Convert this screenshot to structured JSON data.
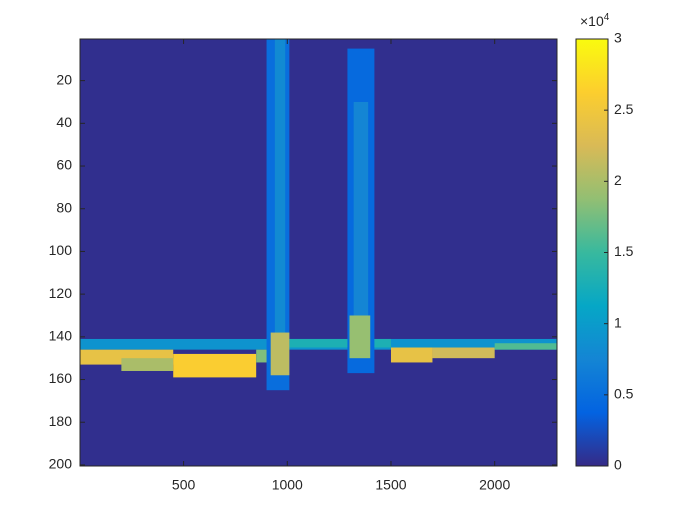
{
  "chart_data": {
    "type": "heatmap",
    "colormap": "parula",
    "xlim": [
      0.5,
      2300.5
    ],
    "ylim": [
      0.5,
      200.5
    ],
    "y_reversed": true,
    "xticks": [
      500,
      1000,
      1500,
      2000
    ],
    "yticks": [
      20,
      40,
      60,
      80,
      100,
      120,
      140,
      160,
      180,
      200
    ],
    "clim": [
      0,
      30000
    ],
    "colorbar_ticks": [
      0,
      {
        "value": 5000,
        "label": "0.5"
      },
      {
        "value": 10000,
        "label": "1"
      },
      {
        "value": 15000,
        "label": "1.5"
      },
      {
        "value": 20000,
        "label": "2"
      },
      {
        "value": 25000,
        "label": "2.5"
      },
      {
        "value": 30000,
        "label": "3"
      }
    ],
    "colorbar_scale_base": "×10",
    "colorbar_scale_exponent": "4",
    "background_value": 300,
    "regions": [
      {
        "x": [
          0.5,
          2300.5
        ],
        "y": [
          141,
          146
        ],
        "value": 9000
      },
      {
        "x": [
          0.5,
          450
        ],
        "y": [
          146,
          153
        ],
        "value": 24000
      },
      {
        "x": [
          200,
          450
        ],
        "y": [
          150,
          156
        ],
        "value": 20000
      },
      {
        "x": [
          450,
          850
        ],
        "y": [
          148,
          159
        ],
        "value": 26000
      },
      {
        "x": [
          850,
          1000
        ],
        "y": [
          146,
          152
        ],
        "value": 18000
      },
      {
        "x": [
          1000,
          1500
        ],
        "y": [
          141,
          145
        ],
        "value": 13000
      },
      {
        "x": [
          1500,
          1700
        ],
        "y": [
          145,
          152
        ],
        "value": 24000
      },
      {
        "x": [
          1700,
          2000
        ],
        "y": [
          145,
          150
        ],
        "value": 22000
      },
      {
        "x": [
          2000,
          2300.5
        ],
        "y": [
          143,
          146
        ],
        "value": 16000
      },
      {
        "x": [
          900,
          1010
        ],
        "y": [
          0.5,
          165
        ],
        "value": 5000
      },
      {
        "x": [
          940,
          990
        ],
        "y": [
          0.5,
          140
        ],
        "value": 8000
      },
      {
        "x": [
          920,
          1010
        ],
        "y": [
          138,
          158
        ],
        "value": 21000
      },
      {
        "x": [
          1290,
          1420
        ],
        "y": [
          5,
          157
        ],
        "value": 4500
      },
      {
        "x": [
          1320,
          1390
        ],
        "y": [
          30,
          132
        ],
        "value": 7500
      },
      {
        "x": [
          1300,
          1400
        ],
        "y": [
          130,
          150
        ],
        "value": 19000
      }
    ]
  }
}
